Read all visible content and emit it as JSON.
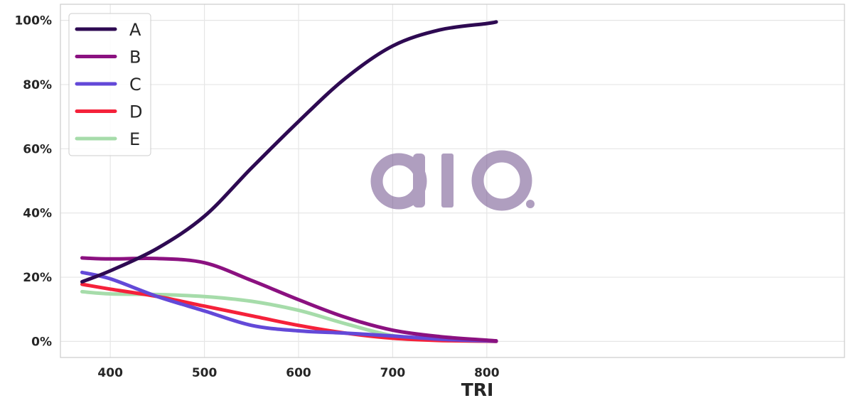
{
  "chart_data": {
    "type": "line",
    "title": "",
    "xlabel": "TRI",
    "ylabel": "",
    "xlim": [
      347,
      1180
    ],
    "ylim": [
      -0.05,
      1.05
    ],
    "x_ticks": [
      400,
      500,
      600,
      700,
      800
    ],
    "x_tick_labels": [
      "400",
      "500",
      "600",
      "700",
      "800"
    ],
    "y_ticks": [
      0,
      0.2,
      0.4,
      0.6,
      0.8,
      1.0
    ],
    "y_tick_labels": [
      "0%",
      "20%",
      "40%",
      "60%",
      "80%",
      "100%"
    ],
    "grid": true,
    "legend_position": "top-left",
    "watermark": "aio.",
    "x": [
      370,
      400,
      450,
      500,
      550,
      600,
      650,
      700,
      750,
      800,
      810
    ],
    "series": [
      {
        "name": "A",
        "color": "#2e0a52",
        "values": [
          0.186,
          0.22,
          0.29,
          0.39,
          0.54,
          0.685,
          0.82,
          0.92,
          0.97,
          0.99,
          0.995
        ]
      },
      {
        "name": "B",
        "color": "#8b1180",
        "values": [
          0.26,
          0.257,
          0.258,
          0.245,
          0.19,
          0.13,
          0.075,
          0.035,
          0.015,
          0.004,
          0.002
        ]
      },
      {
        "name": "C",
        "color": "#6349d8",
        "values": [
          0.215,
          0.195,
          0.14,
          0.095,
          0.05,
          0.033,
          0.026,
          0.017,
          0.007,
          0.002,
          0.001
        ]
      },
      {
        "name": "D",
        "color": "#f5213a",
        "values": [
          0.178,
          0.163,
          0.14,
          0.11,
          0.08,
          0.05,
          0.026,
          0.01,
          0.003,
          0.001,
          0.0
        ]
      },
      {
        "name": "E",
        "color": "#a6dcaa",
        "values": [
          0.155,
          0.148,
          0.146,
          0.14,
          0.125,
          0.097,
          0.055,
          0.018,
          0.004,
          0.001,
          0.0
        ]
      }
    ]
  }
}
